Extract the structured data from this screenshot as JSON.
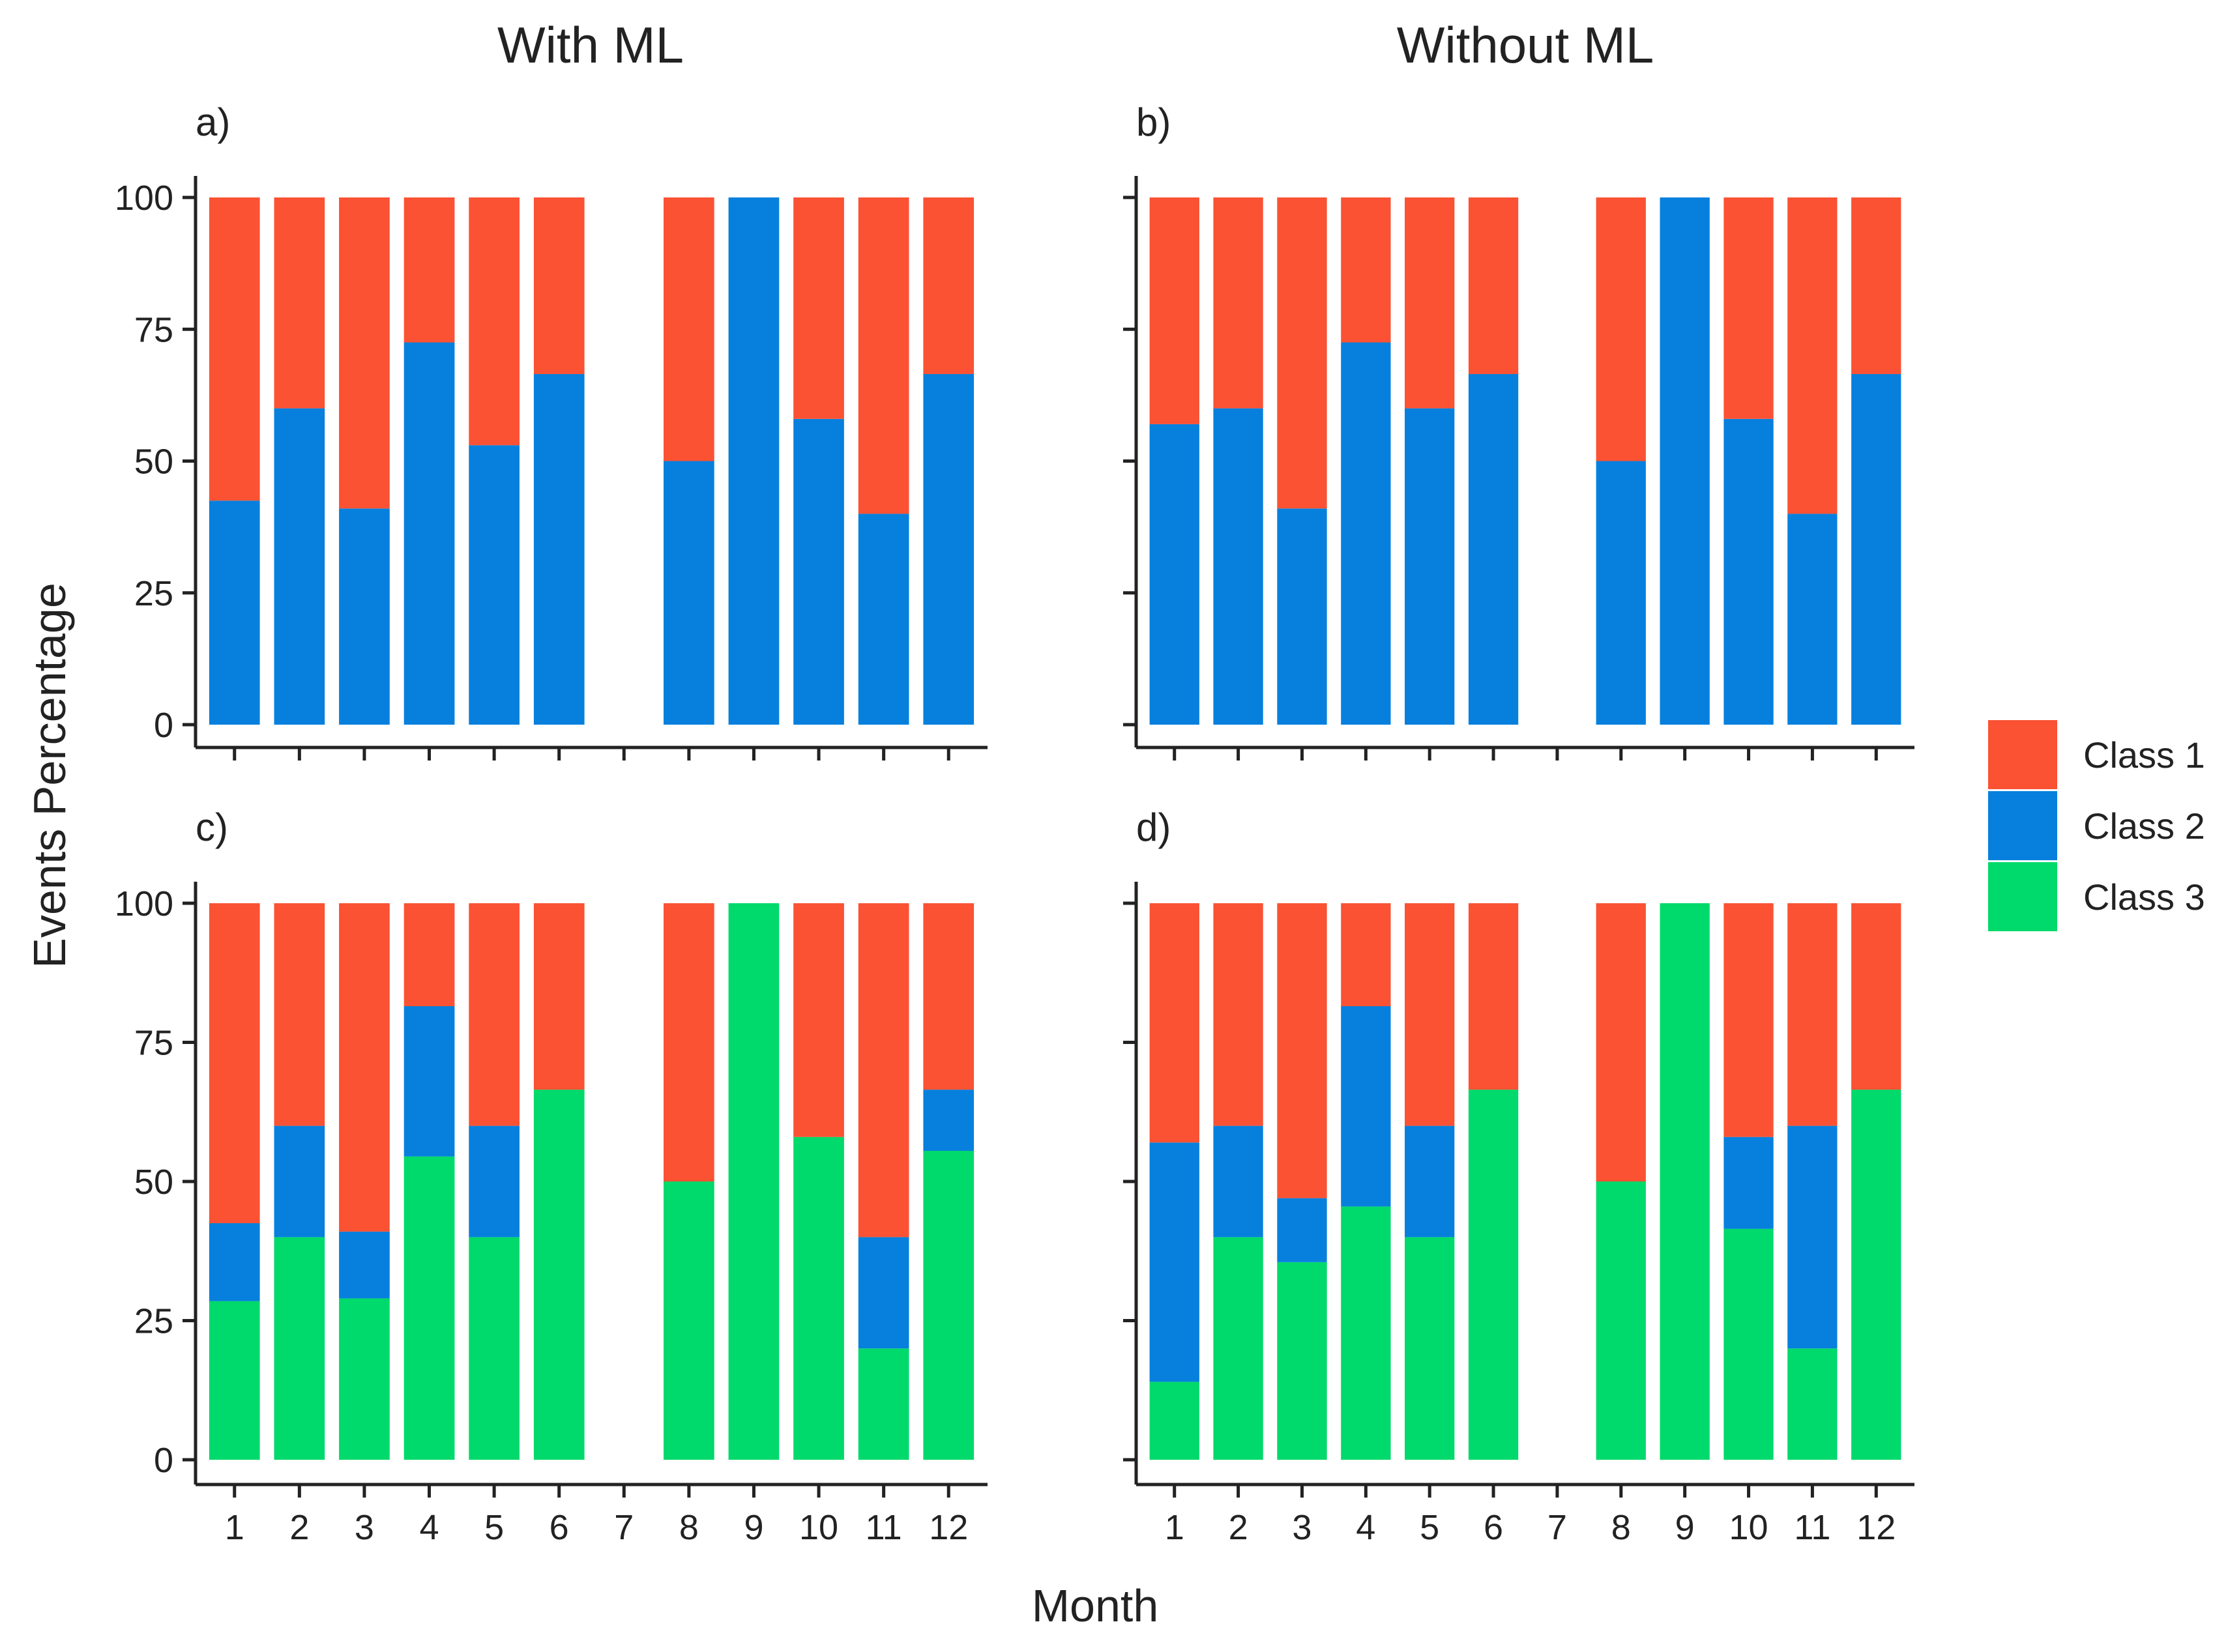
{
  "chart_data": {
    "type": "bar",
    "stacked": true,
    "column_titles": [
      "With ML",
      "Without ML"
    ],
    "xlabel": "Month",
    "ylabel": "Events Percentage",
    "ylim": [
      0,
      100
    ],
    "yticks": [
      0,
      25,
      50,
      75,
      100
    ],
    "categories": [
      "1",
      "2",
      "3",
      "4",
      "5",
      "6",
      "7",
      "8",
      "9",
      "10",
      "11",
      "12"
    ],
    "classes": [
      {
        "name": "Class 1",
        "color": "#FA5233"
      },
      {
        "name": "Class 2",
        "color": "#0780DD"
      },
      {
        "name": "Class 3",
        "color": "#00D96B"
      }
    ],
    "legend_position": "right",
    "panels": [
      {
        "label": "a)",
        "series": [
          {
            "name": "Class 2",
            "values": [
              42.5,
              60,
              41,
              72.5,
              53,
              66.5,
              null,
              50,
              100,
              58,
              40,
              66.5
            ]
          },
          {
            "name": "Class 1",
            "values": [
              57.5,
              40,
              59,
              27.5,
              47,
              33.5,
              null,
              50,
              0,
              42,
              60,
              33.5
            ]
          }
        ]
      },
      {
        "label": "b)",
        "series": [
          {
            "name": "Class 2",
            "values": [
              57,
              60,
              41,
              72.5,
              60,
              66.5,
              null,
              50,
              100,
              58,
              40,
              66.5
            ]
          },
          {
            "name": "Class 1",
            "values": [
              43,
              40,
              59,
              27.5,
              40,
              33.5,
              null,
              50,
              0,
              42,
              60,
              33.5
            ]
          }
        ]
      },
      {
        "label": "c)",
        "series": [
          {
            "name": "Class 3",
            "values": [
              28.5,
              40,
              29,
              54.5,
              40,
              66.5,
              null,
              50,
              100,
              58,
              20,
              55.5
            ]
          },
          {
            "name": "Class 2",
            "values": [
              14,
              20,
              12,
              27,
              20,
              0,
              null,
              0,
              0,
              0,
              20,
              11
            ]
          },
          {
            "name": "Class 1",
            "values": [
              57.5,
              40,
              59,
              18.5,
              40,
              33.5,
              null,
              50,
              0,
              42,
              60,
              33.5
            ]
          }
        ]
      },
      {
        "label": "d)",
        "series": [
          {
            "name": "Class 3",
            "values": [
              14,
              40,
              35.5,
              45.5,
              40,
              66.5,
              null,
              50,
              100,
              41.5,
              20,
              66.5
            ]
          },
          {
            "name": "Class 2",
            "values": [
              43,
              20,
              11.5,
              36,
              20,
              0,
              null,
              0,
              0,
              16.5,
              40,
              0
            ]
          },
          {
            "name": "Class 1",
            "values": [
              43,
              40,
              53,
              18.5,
              40,
              33.5,
              null,
              50,
              0,
              42,
              40,
              33.5
            ]
          }
        ]
      }
    ]
  }
}
